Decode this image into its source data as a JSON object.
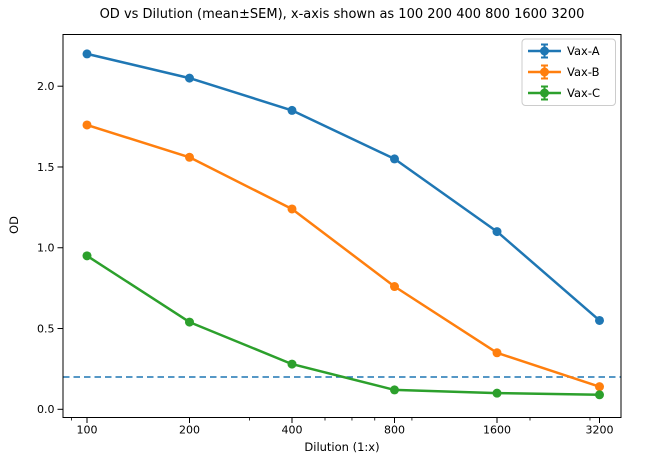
{
  "chart_data": {
    "type": "line",
    "title": "OD vs Dilution (mean±SEM), x-axis shown as 100 200 400 800 1600 3200",
    "xlabel": "Dilution (1:x)",
    "ylabel": "OD",
    "x_scale": "log2",
    "x": [
      100,
      200,
      400,
      800,
      1600,
      3200
    ],
    "x_ticklabels": [
      "100",
      "200",
      "400",
      "800",
      "1600",
      "3200"
    ],
    "x_minor_ticks": [
      90,
      300,
      500,
      600,
      700,
      900,
      2000,
      3000
    ],
    "y_ticks": [
      0.0,
      0.5,
      1.0,
      1.5,
      2.0
    ],
    "y_ticklabels": [
      "0.0",
      "0.5",
      "1.0",
      "1.5",
      "2.0"
    ],
    "xlim": [
      84,
      3800
    ],
    "ylim": [
      -0.05,
      2.32
    ],
    "grid": false,
    "series": [
      {
        "name": "Vax-A",
        "color": "#1f77b4",
        "values": [
          2.2,
          2.05,
          1.85,
          1.55,
          1.1,
          0.55
        ]
      },
      {
        "name": "Vax-B",
        "color": "#ff7f0e",
        "values": [
          1.76,
          1.56,
          1.24,
          0.76,
          0.35,
          0.14
        ]
      },
      {
        "name": "Vax-C",
        "color": "#2ca02c",
        "values": [
          0.95,
          0.54,
          0.28,
          0.12,
          0.1,
          0.09
        ]
      }
    ],
    "error_bars": "mean±SEM; bars smaller than markers (visible only in legend glyphs)",
    "threshold_line": {
      "y": 0.2,
      "style": "dashed",
      "color": "#1f77b4"
    },
    "legend": {
      "position": "upper right",
      "entries": [
        "Vax-A",
        "Vax-B",
        "Vax-C"
      ]
    }
  }
}
